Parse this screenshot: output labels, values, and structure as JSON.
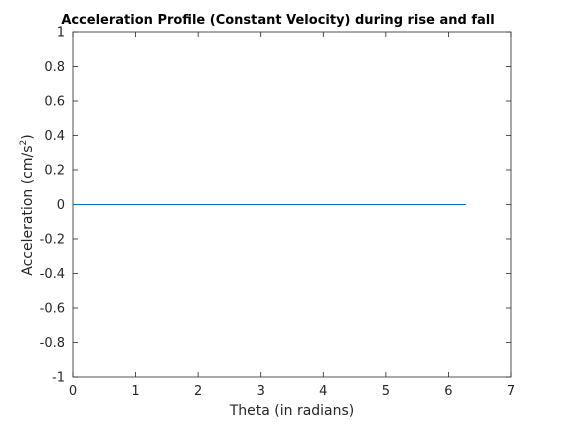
{
  "chart_data": {
    "type": "line",
    "title": "Acceleration Profile (Constant Velocity) during rise and fall",
    "xlabel": "Theta (in radians)",
    "ylabel_main": "Acceleration (cm/s",
    "ylabel_sup": "2",
    "ylabel_close": ")",
    "xlim": [
      0,
      7
    ],
    "ylim": [
      -1,
      1
    ],
    "xticks": [
      0,
      1,
      2,
      3,
      4,
      5,
      6,
      7
    ],
    "xtick_labels": [
      "0",
      "1",
      "2",
      "3",
      "4",
      "5",
      "6",
      "7"
    ],
    "yticks": [
      -1,
      -0.8,
      -0.6,
      -0.4,
      -0.2,
      0,
      0.2,
      0.4,
      0.6,
      0.8,
      1
    ],
    "ytick_labels": [
      "-1",
      "-0.8",
      "-0.6",
      "-0.4",
      "-0.2",
      "0",
      "0.2",
      "0.4",
      "0.6",
      "0.8",
      "1"
    ],
    "grid": false,
    "series": [
      {
        "x": [
          0,
          6.2832
        ],
        "y": [
          0,
          0
        ],
        "color": "#0072bd"
      }
    ]
  }
}
